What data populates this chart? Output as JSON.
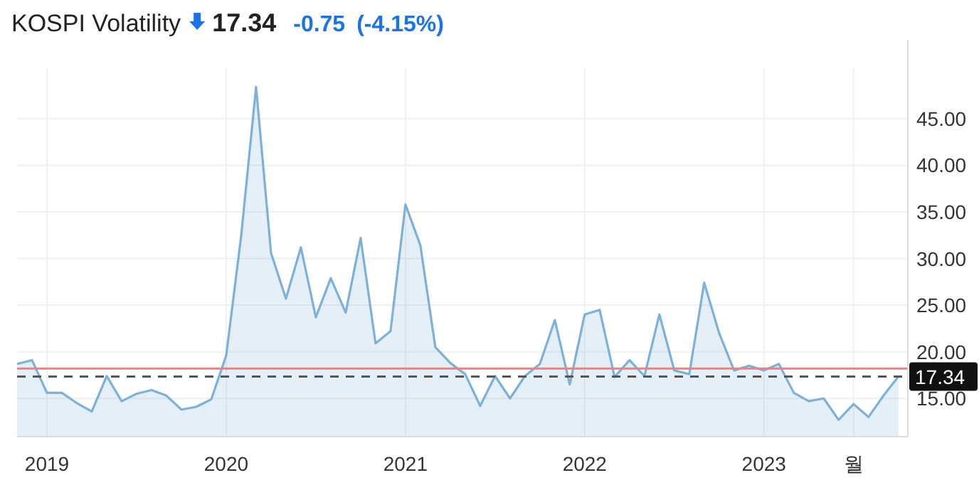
{
  "chart_data": {
    "type": "area",
    "title": "KOSPI Volatility",
    "annotations": [
      "17.34",
      "-0.75",
      "(-4.15%)"
    ],
    "x": [
      "2018-11",
      "2018-12",
      "2019-01",
      "2019-02",
      "2019-03",
      "2019-04",
      "2019-05",
      "2019-06",
      "2019-07",
      "2019-08",
      "2019-09",
      "2019-10",
      "2019-11",
      "2019-12",
      "2020-01",
      "2020-02",
      "2020-03",
      "2020-04",
      "2020-05",
      "2020-06",
      "2020-07",
      "2020-08",
      "2020-09",
      "2020-10",
      "2020-11",
      "2020-12",
      "2021-01",
      "2021-02",
      "2021-03",
      "2021-04",
      "2021-05",
      "2021-06",
      "2021-07",
      "2021-08",
      "2021-09",
      "2021-10",
      "2021-11",
      "2021-12",
      "2022-01",
      "2022-02",
      "2022-03",
      "2022-04",
      "2022-05",
      "2022-06",
      "2022-07",
      "2022-08",
      "2022-09",
      "2022-10",
      "2022-11",
      "2022-12",
      "2023-01",
      "2023-02",
      "2023-03",
      "2023-04",
      "2023-05",
      "2023-06",
      "2023-07",
      "2023-08",
      "2023-09",
      "2023-10"
    ],
    "series": [
      {
        "color": "#7cb1dc",
        "values": [
          18.7,
          19.1,
          15.6,
          15.6,
          14.5,
          13.6,
          17.4,
          14.7,
          15.5,
          15.9,
          15.3,
          13.8,
          14.1,
          14.9,
          19.6,
          32.4,
          48.4,
          30.6,
          25.7,
          31.2,
          23.7,
          27.9,
          24.2,
          32.2,
          20.9,
          22.2,
          35.8,
          31.4,
          20.5,
          18.8,
          17.6,
          14.2,
          17.4,
          15.0,
          17.4,
          18.7,
          23.4,
          16.5,
          24.0,
          24.5,
          17.3,
          19.1,
          17.4,
          24.0,
          18.0,
          17.6,
          27.4,
          22.0,
          18.0,
          18.5,
          18.0,
          18.7,
          15.6,
          14.7,
          15.0,
          12.7,
          14.4,
          13.0,
          15.3,
          17.34
        ]
      }
    ],
    "xlim": [
      "2018-11",
      "2023-10-20"
    ],
    "xticks": [
      {
        "value": "2019-01",
        "label": "2019"
      },
      {
        "value": "2020-01",
        "label": "2020"
      },
      {
        "value": "2021-01",
        "label": "2021"
      },
      {
        "value": "2022-01",
        "label": "2022"
      },
      {
        "value": "2023-01",
        "label": "2023"
      },
      {
        "value": "2023-07",
        "label": "월"
      }
    ],
    "ylim": [
      10.9,
      50.4
    ],
    "yticks": [
      {
        "value": 15,
        "label": "15.00"
      },
      {
        "value": 20,
        "label": "20.00"
      },
      {
        "value": 25,
        "label": "25.00"
      },
      {
        "value": 30,
        "label": "30.00"
      },
      {
        "value": 35,
        "label": "35.00"
      },
      {
        "value": 40,
        "label": "40.00"
      },
      {
        "value": 45,
        "label": "45.00"
      }
    ],
    "ref_lines": [
      {
        "axis": "y",
        "value": 18.2,
        "color": "#f08080",
        "line_style": "solid"
      },
      {
        "axis": "y",
        "value": 17.34,
        "label": "17.34",
        "color": "#555555",
        "line_style": "dashed"
      }
    ],
    "grid": true,
    "marker": "none"
  }
}
